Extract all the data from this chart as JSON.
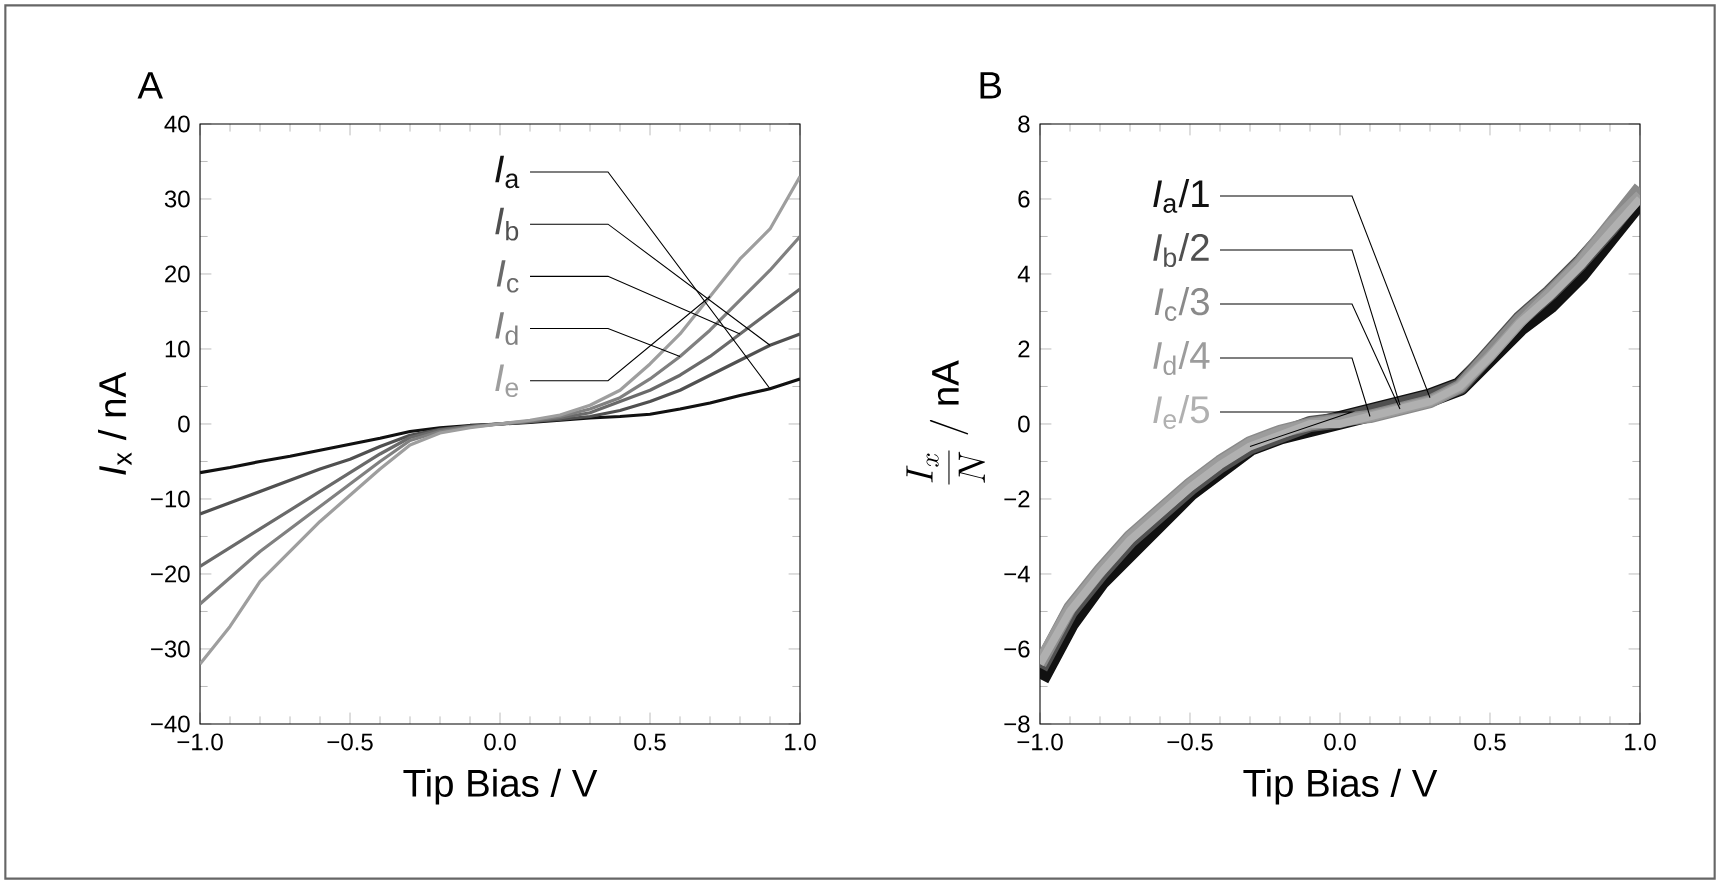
{
  "chart_data": [
    {
      "type": "line",
      "title": "A",
      "xlabel": "Tip Bias / V",
      "ylabel": "*I*$_{x}$ / nA",
      "xlim": [
        -1,
        1
      ],
      "ylim": [
        -40,
        40
      ],
      "xticks": [
        {
          "value": -1,
          "label": "−1.0"
        },
        {
          "value": -0.5,
          "label": "−0.5"
        },
        {
          "value": 0,
          "label": "0.0"
        },
        {
          "value": 0.5,
          "label": "0.5"
        },
        {
          "value": 1,
          "label": "1.0"
        }
      ],
      "yticks": [
        {
          "value": -40,
          "label": "−40"
        },
        {
          "value": -30,
          "label": "−30"
        },
        {
          "value": -20,
          "label": "−20"
        },
        {
          "value": -10,
          "label": "−10"
        },
        0,
        10,
        20,
        30,
        40
      ],
      "grid": false,
      "x": [
        -1,
        -0.9,
        -0.8,
        -0.7,
        -0.6,
        -0.5,
        -0.4,
        -0.3,
        -0.2,
        -0.1,
        0,
        0.1,
        0.2,
        0.3,
        0.4,
        0.5,
        0.6,
        0.7,
        0.8,
        0.9,
        1
      ],
      "series": [
        {
          "name": "*I*$_{a}$",
          "color": "#111111",
          "values": [
            -6.5,
            -5.8,
            -5,
            -4.3,
            -3.5,
            -2.7,
            -1.9,
            -1,
            -0.5,
            -0.2,
            0,
            0.2,
            0.5,
            0.8,
            1,
            1.3,
            2,
            2.8,
            3.8,
            4.7,
            6
          ]
        },
        {
          "name": "*I*$_{b}$",
          "color": "#505050",
          "values": [
            -12,
            -10.5,
            -9,
            -7.5,
            -6,
            -4.7,
            -3,
            -1.5,
            -0.7,
            -0.3,
            0,
            0.3,
            0.6,
            1,
            1.8,
            3,
            4.5,
            6.5,
            8.5,
            10.5,
            12
          ]
        },
        {
          "name": "*I*$_{c}$",
          "color": "#6a6a6a",
          "values": [
            -19,
            -16.5,
            -14,
            -11.5,
            -9,
            -6.5,
            -4,
            -1.8,
            -0.8,
            -0.3,
            0,
            0.3,
            0.8,
            1.5,
            3,
            4.5,
            6.5,
            9,
            12,
            15,
            18
          ]
        },
        {
          "name": "*I*$_{d}$",
          "color": "#808080",
          "values": [
            -24,
            -20.5,
            -17,
            -14,
            -11,
            -8,
            -5,
            -2.2,
            -1,
            -0.4,
            0,
            0.4,
            1,
            2,
            3.5,
            6,
            9,
            12.5,
            16.5,
            20.5,
            25
          ]
        },
        {
          "name": "*I*$_{e}$",
          "color": "#9e9e9e",
          "values": [
            -32,
            -27,
            -21,
            -17,
            -13,
            -9.5,
            -6,
            -2.8,
            -1.2,
            -0.5,
            0,
            0.5,
            1.2,
            2.5,
            4.5,
            8,
            12,
            17,
            22,
            26,
            33
          ]
        }
      ]
    },
    {
      "type": "line",
      "title": "B",
      "xlabel": "Tip Bias / V",
      "ylabel": "\\frac{I_x}{N}\\ /\\ \\mathrm{nA}",
      "xlim": [
        -1,
        1
      ],
      "ylim": [
        -8,
        8
      ],
      "xticks": [
        {
          "value": -1,
          "label": "−1.0"
        },
        {
          "value": -0.5,
          "label": "−0.5"
        },
        {
          "value": 0,
          "label": "0.0"
        },
        {
          "value": 0.5,
          "label": "0.5"
        },
        {
          "value": 1,
          "label": "1.0"
        }
      ],
      "yticks": [
        {
          "value": -8,
          "label": "−8"
        },
        {
          "value": -6,
          "label": "−6"
        },
        {
          "value": -4,
          "label": "−4"
        },
        {
          "value": -2,
          "label": "−2"
        },
        0,
        2,
        4,
        6,
        8
      ],
      "grid": false,
      "x": [
        -1,
        -0.9,
        -0.8,
        -0.7,
        -0.6,
        -0.5,
        -0.4,
        -0.3,
        -0.2,
        -0.1,
        0,
        0.1,
        0.2,
        0.3,
        0.4,
        0.5,
        0.6,
        0.7,
        0.8,
        0.9,
        1
      ],
      "series": [
        {
          "name": "*I*$_{a}$/1",
          "color": "#111111",
          "values": [
            -6.8,
            -5.3,
            -4.2,
            -3.4,
            -2.6,
            -1.8,
            -1.2,
            -0.6,
            -0.3,
            -0.1,
            0.1,
            0.3,
            0.5,
            0.7,
            1,
            1.8,
            2.6,
            3.2,
            4,
            5,
            6
          ]
        },
        {
          "name": "*I*$_{b}$/2",
          "color": "#505050",
          "values": [
            -6.5,
            -5,
            -4,
            -3.1,
            -2.4,
            -1.7,
            -1.1,
            -0.6,
            -0.3,
            0,
            0.1,
            0.3,
            0.5,
            0.7,
            1,
            1.9,
            2.8,
            3.5,
            4.3,
            5.2,
            6.2
          ]
        },
        {
          "name": "*I*$_{c}$/3",
          "color": "#8a8a8a",
          "values": [
            -6.4,
            -4.9,
            -3.9,
            -3,
            -2.3,
            -1.6,
            -1,
            -0.5,
            -0.2,
            0,
            0.1,
            0.2,
            0.4,
            0.6,
            1,
            1.9,
            2.8,
            3.5,
            4.3,
            5.3,
            6.3
          ]
        },
        {
          "name": "*I*$_{d}$/4",
          "color": "#9c9c9c",
          "values": [
            -6.3,
            -4.9,
            -3.9,
            -3,
            -2.3,
            -1.6,
            -1,
            -0.5,
            -0.2,
            0,
            0.1,
            0.2,
            0.4,
            0.6,
            1,
            1.8,
            2.7,
            3.5,
            4.3,
            5.3,
            6.1
          ]
        },
        {
          "name": "*I*$_{e}$/5",
          "color": "#b0b0b0",
          "values": [
            -6.4,
            -5,
            -4,
            -3.1,
            -2.4,
            -1.7,
            -1.1,
            -0.6,
            -0.3,
            0,
            0,
            0.2,
            0.4,
            0.6,
            1,
            1.8,
            2.7,
            3.4,
            4.2,
            5.1,
            6
          ]
        }
      ]
    }
  ]
}
